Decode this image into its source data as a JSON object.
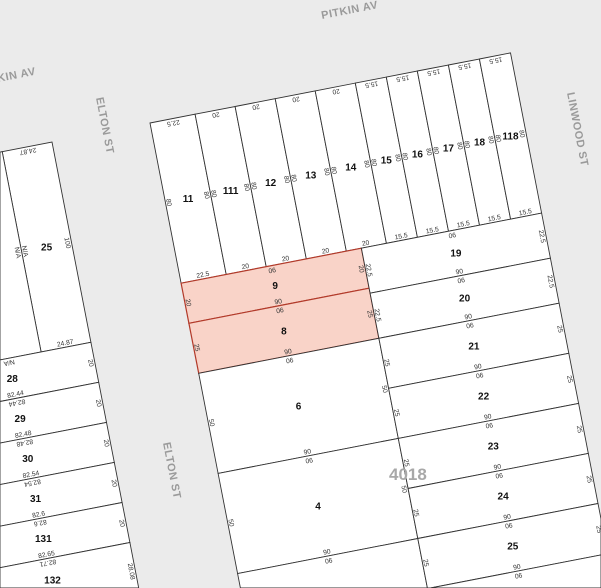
{
  "streets": {
    "pitkin_top": "PITKIN AV",
    "pitkin_left": "KIN AV",
    "elton_top": "ELTON ST",
    "elton_bottom": "ELTON ST",
    "linwood": "LINWOOD ST"
  },
  "block_number": "4018",
  "colors": {
    "background": "#ebebeb",
    "parcel": "#ffffff",
    "highlight_fill": "#f9d3c8",
    "highlight_stroke": "#b23a2a",
    "street_label": "#9a9a9a"
  },
  "blocks": [
    {
      "lots": [
        {
          "label": "11",
          "dims": {
            "top": "22.5",
            "bottom": "22.5",
            "left": "80",
            "right": "80"
          }
        },
        {
          "label": "111",
          "dims": {
            "top": "20",
            "bottom": "20",
            "left": "80",
            "right": "80"
          }
        },
        {
          "label": "12",
          "dims": {
            "top": "20",
            "bottom": "20",
            "left": "80",
            "right": "80"
          }
        },
        {
          "label": "13",
          "dims": {
            "top": "20",
            "bottom": "20",
            "left": "80",
            "right": "80"
          }
        },
        {
          "label": "14",
          "dims": {
            "top": "20",
            "bottom": "20",
            "left": "80",
            "right": "80"
          }
        },
        {
          "label": "15",
          "dims": {
            "top": "15.5",
            "bottom": "15.5",
            "left": "80",
            "right": "80"
          }
        },
        {
          "label": "16",
          "dims": {
            "top": "15.5",
            "bottom": "15.5",
            "left": "80",
            "right": "80"
          }
        },
        {
          "label": "17",
          "dims": {
            "top": "15.5",
            "bottom": "15.5",
            "left": "80",
            "right": "80"
          }
        },
        {
          "label": "18",
          "dims": {
            "top": "15.5",
            "bottom": "15.5",
            "left": "80",
            "right": "80"
          }
        },
        {
          "label": "118",
          "dims": {
            "top": "15.5",
            "bottom": "15.5",
            "left": "80",
            "right": "80"
          }
        },
        {
          "label": "9",
          "highlighted": true,
          "dims": {
            "top": "90",
            "bottom": "90",
            "left": "20",
            "right": "20"
          }
        },
        {
          "label": "8",
          "highlighted": true,
          "dims": {
            "top": "90",
            "bottom": "90",
            "left": "25",
            "right": "25"
          }
        },
        {
          "label": "6",
          "dims": {
            "top": "90",
            "bottom": "90",
            "left": "50",
            "right": "50"
          }
        },
        {
          "label": "4",
          "dims": {
            "top": "90",
            "bottom": "90",
            "left": "50",
            "right": "50"
          }
        },
        {
          "label": "",
          "dims": {
            "top": "90"
          }
        },
        {
          "label": "19",
          "dims": {
            "top": "90",
            "bottom": "90",
            "left": "22.5",
            "right": "22.5"
          }
        },
        {
          "label": "20",
          "dims": {
            "top": "90",
            "bottom": "90",
            "left": "22.5",
            "right": "22.5"
          }
        },
        {
          "label": "21",
          "dims": {
            "top": "90",
            "bottom": "90",
            "left": "25",
            "right": "25"
          }
        },
        {
          "label": "22",
          "dims": {
            "top": "90",
            "bottom": "90",
            "left": "25",
            "right": "25"
          }
        },
        {
          "label": "23",
          "dims": {
            "top": "90",
            "bottom": "90",
            "left": "25",
            "right": "25"
          }
        },
        {
          "label": "24",
          "dims": {
            "top": "90",
            "bottom": "90",
            "left": "25",
            "right": "25"
          }
        },
        {
          "label": "25",
          "dims": {
            "top": "90",
            "bottom": "90",
            "left": "25",
            "right": "25"
          }
        },
        {
          "label": "",
          "dims": {
            "top": "90"
          }
        }
      ]
    },
    {
      "lots": [
        {
          "label": "25",
          "dims": {
            "top": "24.87",
            "bottom": "24.87",
            "left": "N/A",
            "right": "100"
          }
        },
        {
          "label": "",
          "dims": {
            "right": "N/A"
          }
        },
        {
          "label": "28",
          "dims": {
            "top": "N/A",
            "bottom": "82.44",
            "right": "20"
          }
        },
        {
          "label": "29",
          "dims": {
            "top": "82.44",
            "bottom": "82.48",
            "right": "20"
          }
        },
        {
          "label": "30",
          "dims": {
            "top": "82.48",
            "bottom": "82.54",
            "right": "20"
          }
        },
        {
          "label": "31",
          "dims": {
            "top": "82.54",
            "bottom": "82.6",
            "right": "20"
          }
        },
        {
          "label": "131",
          "dims": {
            "top": "82.6",
            "bottom": "82.65",
            "right": "20"
          }
        },
        {
          "label": "132",
          "dims": {
            "top": "82.71",
            "right": "28.08"
          }
        }
      ]
    }
  ]
}
